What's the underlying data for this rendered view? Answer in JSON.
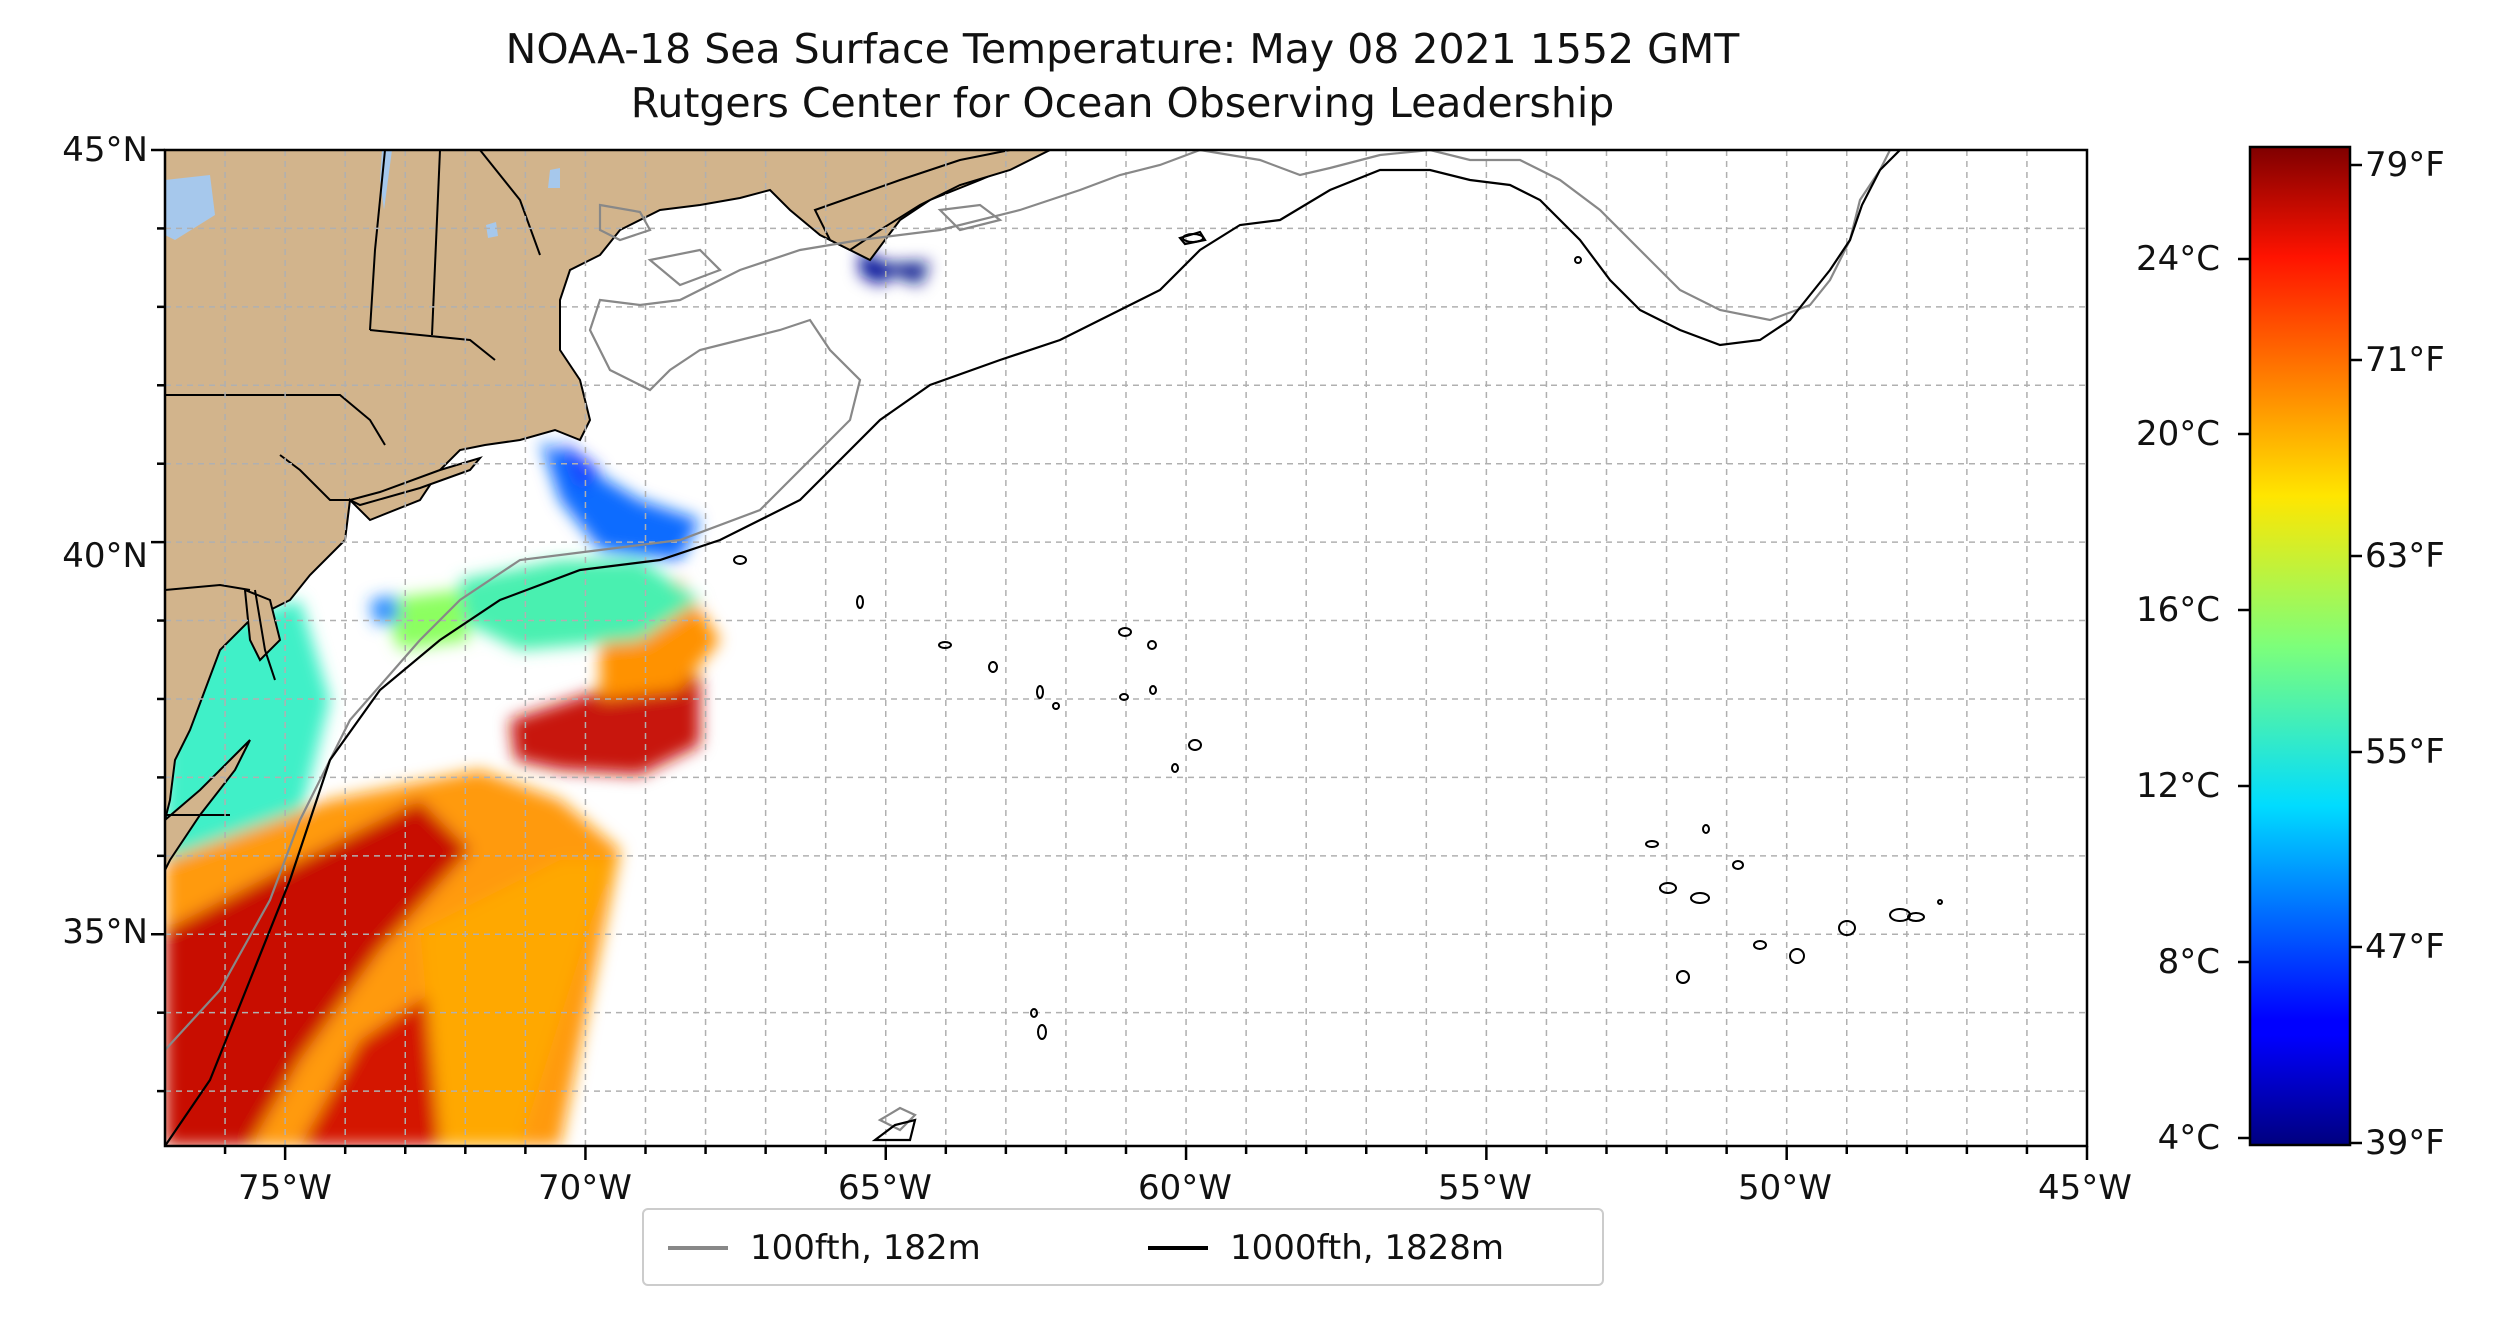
{
  "title": {
    "line1": "NOAA-18 Sea Surface Temperature: May 08 2021 1552 GMT",
    "line2": "Rutgers Center for Ocean Observing Leadership"
  },
  "map": {
    "lon_range": [
      -77,
      -45
    ],
    "lat_range": [
      32.3,
      45
    ],
    "lat_labels": [
      "45°N",
      "40°N",
      "35°N"
    ],
    "lon_labels": [
      "75°W",
      "70°W",
      "65°W",
      "60°W",
      "55°W",
      "50°W",
      "45°W"
    ],
    "colors": {
      "land": "#d2b48c",
      "lakes": "#a6c8ec",
      "isobath_100": "#888888",
      "isobath_1000": "#000000",
      "grid": "#b0b0b0"
    }
  },
  "colorbar": {
    "colormap": "jet",
    "celsius_labels": [
      "24°C",
      "20°C",
      "16°C",
      "12°C",
      "8°C",
      "4°C"
    ],
    "fahrenheit_labels": [
      "79°F",
      "71°F",
      "63°F",
      "55°F",
      "47°F",
      "39°F"
    ]
  },
  "legend": {
    "items": [
      {
        "label": "100fth, 182m",
        "color": "#888888"
      },
      {
        "label": "1000fth, 1828m",
        "color": "#000000"
      }
    ]
  }
}
